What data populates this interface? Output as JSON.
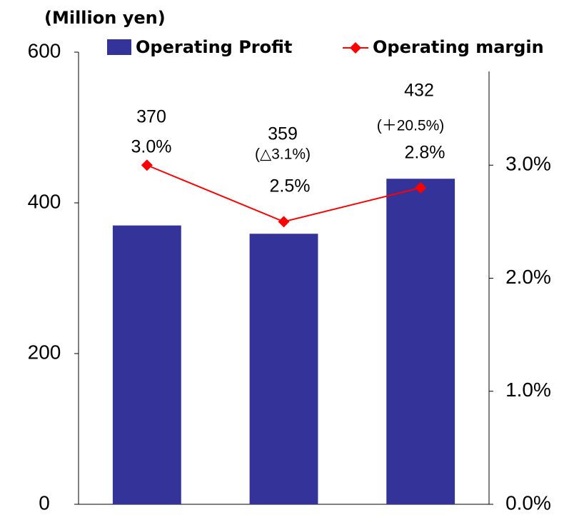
{
  "chart_data": {
    "type": "bar",
    "unit_label": "(Million yen)",
    "categories": [
      null,
      null,
      null
    ],
    "series": [
      {
        "name": "Operating Profit",
        "type": "bar",
        "color": "#333399",
        "values": [
          370,
          359,
          432
        ]
      },
      {
        "name": "Operating margin",
        "type": "line",
        "axis": "y2",
        "color": "#ff0000",
        "values": [
          3.0,
          2.5,
          2.8
        ],
        "value_labels": [
          "3.0%",
          "2.5%",
          "2.8%"
        ]
      }
    ],
    "annotations": [
      "(△3.1%)",
      "(＋20.5%)"
    ],
    "ylim": [
      0,
      600
    ],
    "yticks": [
      0,
      200,
      400,
      600
    ],
    "y2lim": [
      0,
      4
    ],
    "y2ticks": [
      {
        "value": 0,
        "label": "0.0%"
      },
      {
        "value": 1,
        "label": "1.0%"
      },
      {
        "value": 2,
        "label": "2.0%"
      },
      {
        "value": 3,
        "label": "3.0%"
      }
    ],
    "legend": "top"
  }
}
